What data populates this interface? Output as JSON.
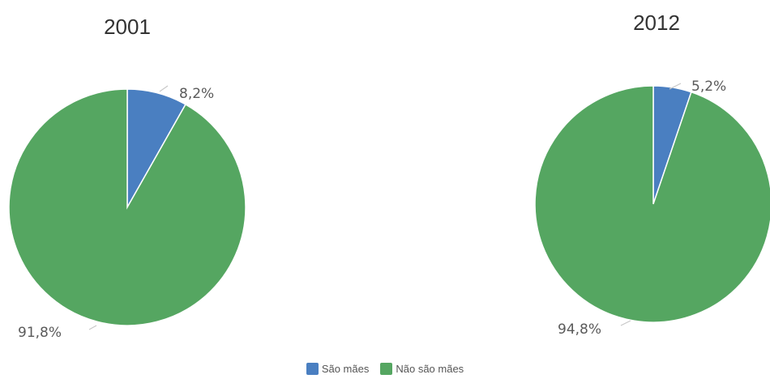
{
  "chart_data": [
    {
      "type": "pie",
      "title": "2001",
      "categories": [
        "São mães",
        "Não são mães"
      ],
      "values": [
        8.2,
        91.8
      ],
      "labels": [
        "8,2%",
        "91,8%"
      ]
    },
    {
      "type": "pie",
      "title": "2012",
      "categories": [
        "São mães",
        "Não são mães"
      ],
      "values": [
        5.2,
        94.8
      ],
      "labels": [
        "5,2%",
        "94,8%"
      ]
    }
  ],
  "legend": {
    "items": [
      {
        "label": "São mães",
        "color": "#4a7fc1"
      },
      {
        "label": "Não são mães",
        "color": "#55a661"
      }
    ]
  },
  "colors": {
    "sao_maes": "#4a7fc1",
    "nao_sao_maes": "#55a661"
  }
}
